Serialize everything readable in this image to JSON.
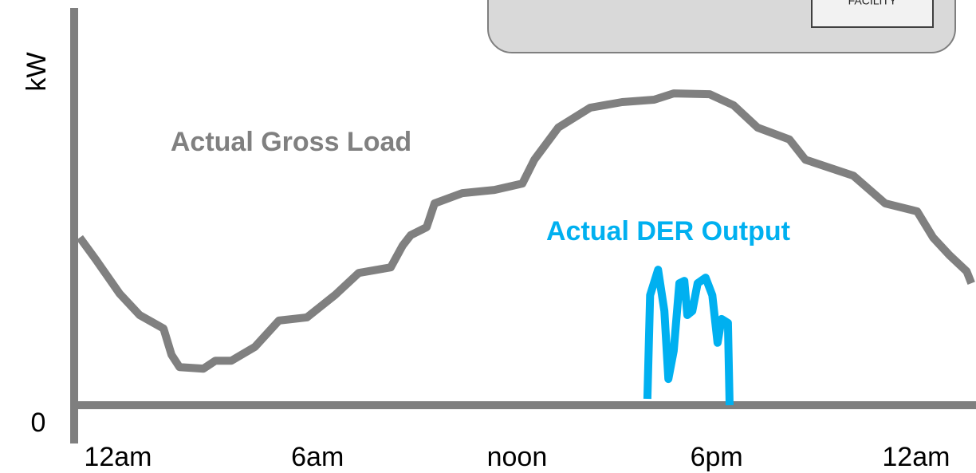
{
  "panel": {
    "button": "FACILITY"
  },
  "chart_data": {
    "type": "line",
    "y_label": "kW",
    "xlim": [
      -1.15,
      25.8
    ],
    "xticks": [
      {
        "value": 0,
        "label": "12am"
      },
      {
        "value": 6,
        "label": "6am"
      },
      {
        "value": 12,
        "label": "noon"
      },
      {
        "value": 18,
        "label": "6pm"
      },
      {
        "value": 24,
        "label": "12am"
      }
    ],
    "ylim": [
      0,
      100
    ],
    "yticks": [
      0
    ],
    "grid": false,
    "series": [
      {
        "name": "Actual Gross Load",
        "color": "#808080",
        "x": [
          -1.15,
          -0.67,
          0.05,
          0.65,
          1.37,
          1.61,
          1.85,
          2.57,
          2.93,
          3.41,
          4.12,
          4.84,
          5.68,
          6.52,
          7.24,
          8.2,
          8.56,
          8.8,
          9.28,
          9.52,
          10.36,
          11.32,
          12.16,
          12.52,
          13.24,
          14.2,
          15.16,
          16.12,
          16.71,
          17.79,
          18.51,
          19.23,
          20.19,
          20.67,
          22.11,
          23.07,
          24.03,
          24.51,
          25.0,
          25.52,
          25.66
        ],
        "values": [
          42.2,
          36.7,
          28.1,
          22.7,
          19.3,
          12.7,
          9.6,
          9.2,
          11.2,
          11.2,
          14.7,
          21.3,
          22.1,
          27.7,
          33.3,
          34.7,
          40.2,
          42.8,
          44.8,
          50.8,
          53.4,
          54.2,
          55.8,
          61.8,
          69.9,
          74.9,
          76.3,
          76.9,
          78.5,
          78.3,
          75.5,
          69.9,
          66.9,
          61.8,
          57.8,
          50.8,
          48.8,
          42.2,
          37.8,
          33.7,
          30.7
        ]
      },
      {
        "name": "Actual DER Output",
        "color": "#00b0f0",
        "x": [
          15.92,
          16.0,
          16.24,
          16.43,
          16.55,
          16.71,
          16.88,
          17.03,
          17.12,
          17.27,
          17.43,
          17.67,
          17.87,
          18.03,
          18.15,
          18.34,
          18.39
        ],
        "values": [
          1.6,
          27.7,
          34.1,
          23.7,
          6.6,
          13.7,
          30.7,
          31.3,
          22.7,
          23.7,
          30.7,
          32.1,
          27.7,
          15.7,
          21.7,
          20.7,
          0
        ]
      }
    ]
  }
}
